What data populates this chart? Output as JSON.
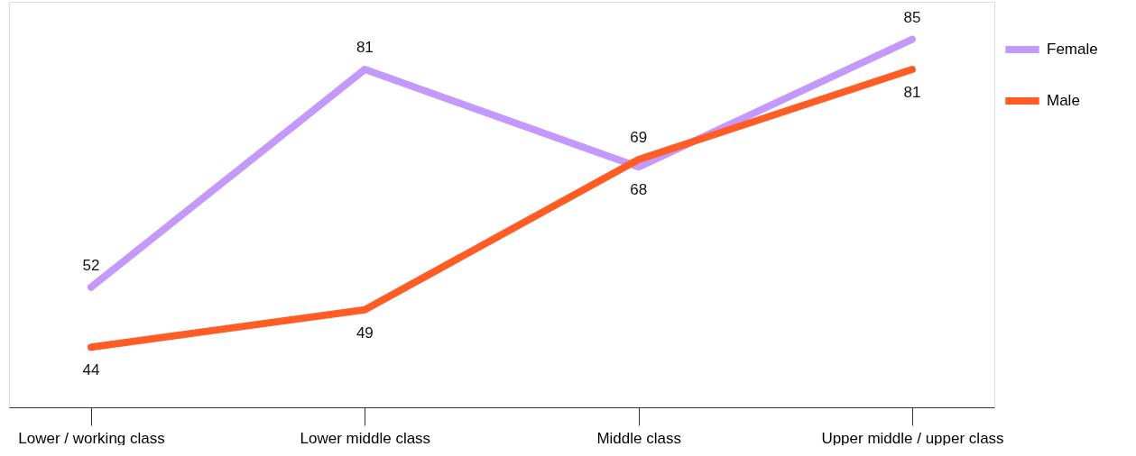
{
  "chart_data": {
    "type": "line",
    "categories": [
      "Lower / working class",
      "Lower middle class",
      "Middle class",
      "Upper middle / upper class"
    ],
    "series": [
      {
        "name": "Female",
        "color": "#c499fc",
        "values": [
          52,
          81,
          68,
          85
        ]
      },
      {
        "name": "Male",
        "color": "#ff5c26",
        "values": [
          44,
          49,
          69,
          81
        ]
      }
    ],
    "ylim": [
      36,
      90
    ],
    "tick_labels": "x",
    "grid": false,
    "legend": "top right",
    "data_labels": true,
    "marker": "none",
    "line_style": "solid"
  }
}
